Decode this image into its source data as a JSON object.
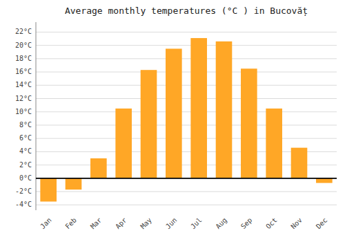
{
  "chart_data": {
    "type": "bar",
    "title": "Average monthly temperatures (°C ) in Bucovăț",
    "categories": [
      "Jan",
      "Feb",
      "Mar",
      "Apr",
      "May",
      "Jun",
      "Jul",
      "Aug",
      "Sep",
      "Oct",
      "Nov",
      "Dec"
    ],
    "values": [
      -3.5,
      -1.7,
      3.0,
      10.5,
      16.3,
      19.5,
      21.1,
      20.6,
      16.5,
      10.5,
      4.6,
      -0.7
    ],
    "color": "#FFA726",
    "ylim": [
      -4.8,
      23.5
    ],
    "yticks": [
      {
        "value": -4,
        "label": "-4°C"
      },
      {
        "value": -2,
        "label": "-2°C"
      },
      {
        "value": 0,
        "label": "0°C"
      },
      {
        "value": 2,
        "label": "2°C"
      },
      {
        "value": 4,
        "label": "4°C"
      },
      {
        "value": 6,
        "label": "6°C"
      },
      {
        "value": 8,
        "label": "8°C"
      },
      {
        "value": 10,
        "label": "10°C"
      },
      {
        "value": 12,
        "label": "12°C"
      },
      {
        "value": 14,
        "label": "14°C"
      },
      {
        "value": 16,
        "label": "16°C"
      },
      {
        "value": 18,
        "label": "18°C"
      },
      {
        "value": 20,
        "label": "20°C"
      },
      {
        "value": 22,
        "label": "22°C"
      }
    ],
    "grid": true
  }
}
